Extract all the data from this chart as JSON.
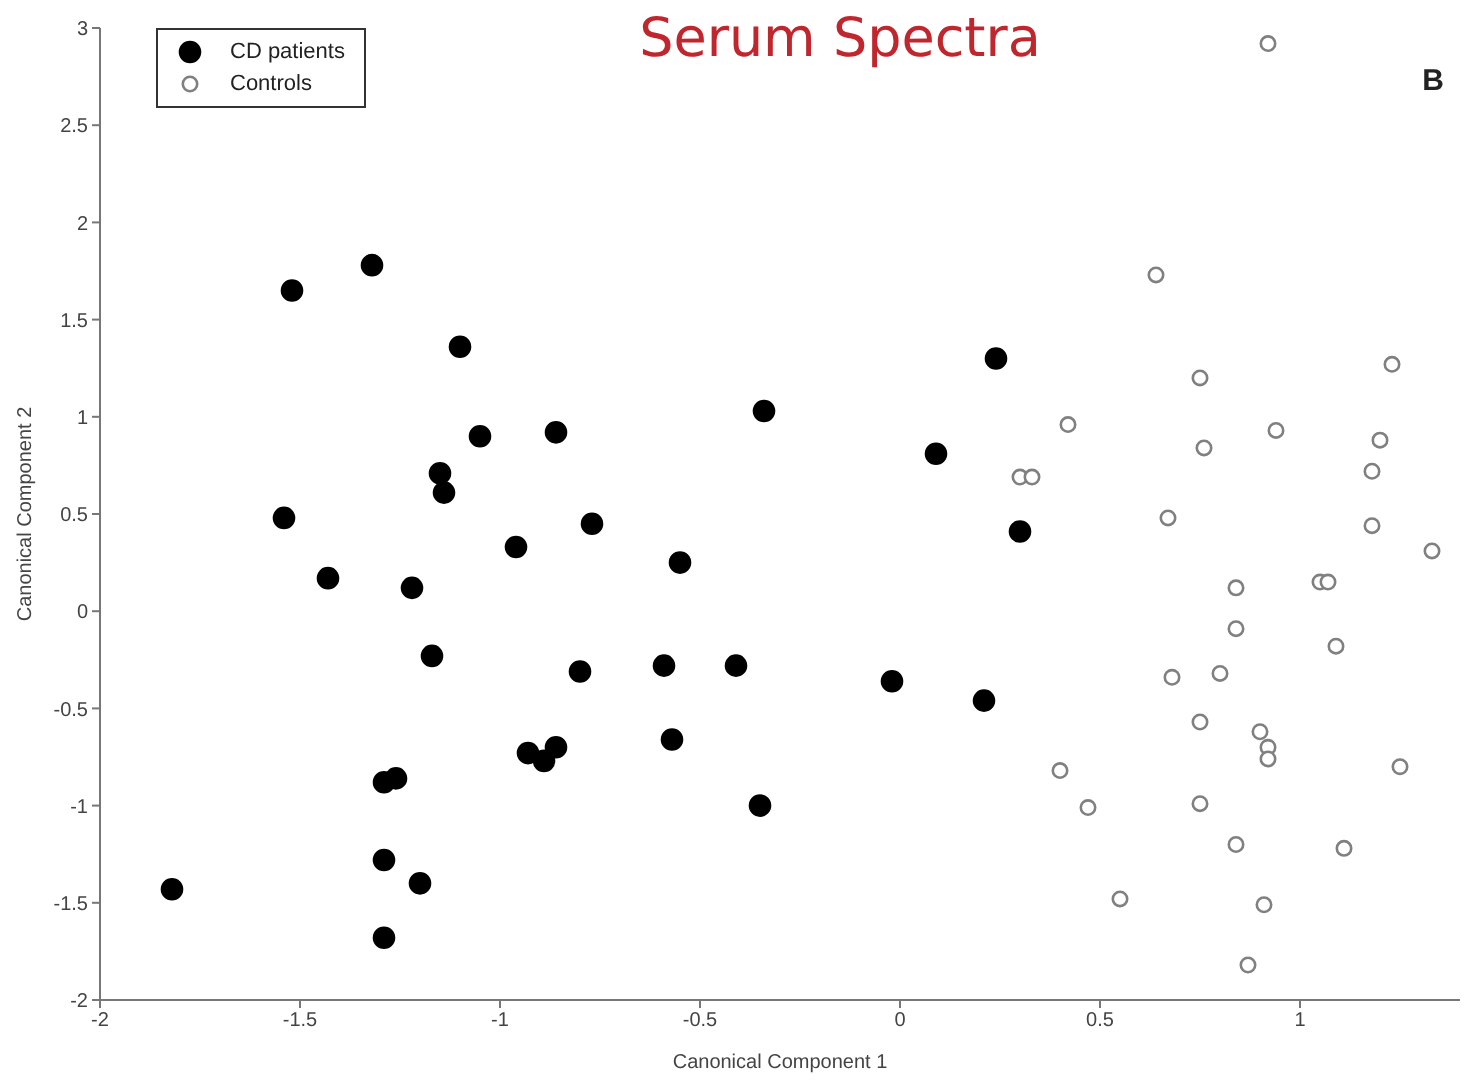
{
  "chart_data": {
    "type": "scatter",
    "title": "Serum Spectra",
    "xlabel": "Canonical Component 1",
    "ylabel": "Canonical Component 2",
    "annotations": [
      "B"
    ],
    "xlim": [
      -2,
      1.4
    ],
    "xticks": [
      -2,
      -1.5,
      -1,
      -0.5,
      0,
      0.5,
      1
    ],
    "ylim": [
      -2,
      3
    ],
    "yticks": [
      -2,
      -1.5,
      -1,
      -0.5,
      0,
      0.5,
      1,
      1.5,
      2,
      2.5,
      3
    ],
    "grid": false,
    "legend": "top left",
    "marker": "circle",
    "series": [
      {
        "name": "CD patients",
        "color": "#000000",
        "x": [
          -1.52,
          -1.32,
          -1.1,
          -1.05,
          -0.86,
          -1.15,
          -1.14,
          -1.54,
          -0.77,
          -0.96,
          -1.43,
          -1.22,
          -0.55,
          -1.17,
          -0.8,
          -0.59,
          -0.41,
          -0.02,
          0.21,
          -0.57,
          -0.93,
          -0.89,
          -0.86,
          -1.29,
          -1.26,
          -0.35,
          -1.29,
          -1.2,
          -1.29,
          -1.82,
          -0.34,
          0.24,
          0.09,
          0.3
        ],
        "values": [
          1.65,
          1.78,
          1.36,
          0.9,
          0.92,
          0.71,
          0.61,
          0.48,
          0.45,
          0.33,
          0.17,
          0.12,
          0.25,
          -0.23,
          -0.31,
          -0.28,
          -0.28,
          -0.36,
          -0.46,
          -0.66,
          -0.73,
          -0.77,
          -0.7,
          -0.88,
          -0.86,
          -1.0,
          -1.28,
          -1.4,
          -1.68,
          -1.43,
          1.03,
          1.3,
          0.81,
          0.41
        ]
      },
      {
        "name": "Controls",
        "color": "#808080",
        "x": [
          0.92,
          0.64,
          0.75,
          1.23,
          0.42,
          0.94,
          0.76,
          1.2,
          0.3,
          0.33,
          1.18,
          0.67,
          1.18,
          1.33,
          0.84,
          1.05,
          1.07,
          0.84,
          1.09,
          0.8,
          0.68,
          0.75,
          0.9,
          0.92,
          0.92,
          1.25,
          0.4,
          0.47,
          0.75,
          0.84,
          1.11,
          0.55,
          0.91,
          0.87
        ],
        "values": [
          2.92,
          1.73,
          1.2,
          1.27,
          0.96,
          0.93,
          0.84,
          0.88,
          0.69,
          0.69,
          0.72,
          0.48,
          0.44,
          0.31,
          0.12,
          0.15,
          0.15,
          -0.09,
          -0.18,
          -0.32,
          -0.34,
          -0.57,
          -0.62,
          -0.7,
          -0.76,
          -0.8,
          -0.82,
          -1.01,
          -0.99,
          -1.2,
          -1.22,
          -1.48,
          -1.51,
          -1.82
        ]
      }
    ]
  }
}
